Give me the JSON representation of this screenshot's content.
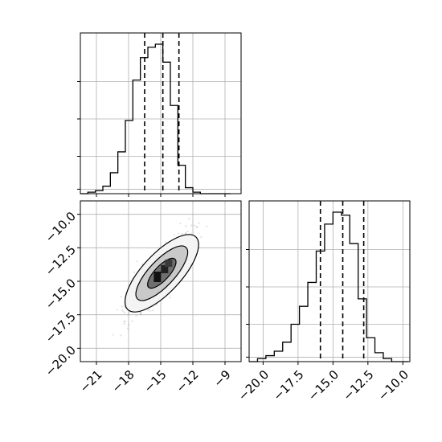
{
  "chart_data": {
    "type": "corner",
    "parameters": [
      "",
      ""
    ],
    "quantiles": [
      0.16,
      0.5,
      0.84
    ],
    "panels": [
      {
        "id": "hist-param-1",
        "type": "histogram",
        "x": [
          -22.5,
          -21.8,
          -21.1,
          -20.4,
          -19.7,
          -19.0,
          -18.3,
          -17.6,
          -16.9,
          -16.2,
          -15.5,
          -14.8,
          -14.1,
          -13.4,
          -12.7,
          -12.0,
          -11.3,
          -10.6,
          -9.9,
          -9.2,
          -8.5
        ],
        "counts": [
          0,
          0.01,
          0.02,
          0.05,
          0.14,
          0.28,
          0.49,
          0.76,
          0.91,
          0.98,
          1.0,
          0.88,
          0.59,
          0.19,
          0.04,
          0.01,
          0,
          0,
          0,
          0
        ],
        "quantile_lines": [
          -16.5,
          -14.8,
          -13.3
        ],
        "xlim": [
          -22.5,
          -7.5
        ],
        "xticks": [
          -21,
          -18,
          -15,
          -12,
          -9
        ],
        "grid": true
      },
      {
        "id": "scatter-2d",
        "type": "2d-density",
        "xlim": [
          -22.5,
          -7.5
        ],
        "ylim": [
          -21,
          -9
        ],
        "xticks": [
          -21,
          -18,
          -15,
          -12,
          -9
        ],
        "xtick_labels": [
          "−21",
          "−18",
          "−15",
          "−12",
          "−9"
        ],
        "yticks": [
          -20.0,
          -17.5,
          -15.0,
          -12.5,
          -10.0
        ],
        "ytick_labels": [
          "−20.0",
          "−17.5",
          "−15.0",
          "−12.5",
          "−10.0"
        ],
        "center": [
          -14.9,
          -14.4
        ],
        "contour_levels": [
          "outer",
          "middle",
          "inner"
        ],
        "grid": true
      },
      {
        "id": "hist-param-2",
        "type": "histogram",
        "x": [
          -21,
          -20.4,
          -19.8,
          -19.2,
          -18.6,
          -18.0,
          -17.4,
          -16.8,
          -16.2,
          -15.6,
          -15.0,
          -14.4,
          -13.8,
          -13.2,
          -12.6,
          -12.0,
          -11.4,
          -10.8,
          -10.2,
          -9.6
        ],
        "counts": [
          0,
          0.02,
          0.04,
          0.07,
          0.13,
          0.25,
          0.37,
          0.53,
          0.74,
          0.92,
          1.0,
          0.98,
          0.79,
          0.42,
          0.16,
          0.06,
          0.02,
          0,
          0
        ],
        "quantile_lines": [
          -15.9,
          -14.3,
          -12.8
        ],
        "xlim": [
          -21,
          -9.5
        ],
        "xticks": [
          -20.0,
          -17.5,
          -15.0,
          -12.5,
          -10.0
        ],
        "xtick_labels": [
          "−20.0",
          "−17.5",
          "−15.0",
          "−12.5",
          "−10.0"
        ],
        "grid": true
      }
    ]
  }
}
